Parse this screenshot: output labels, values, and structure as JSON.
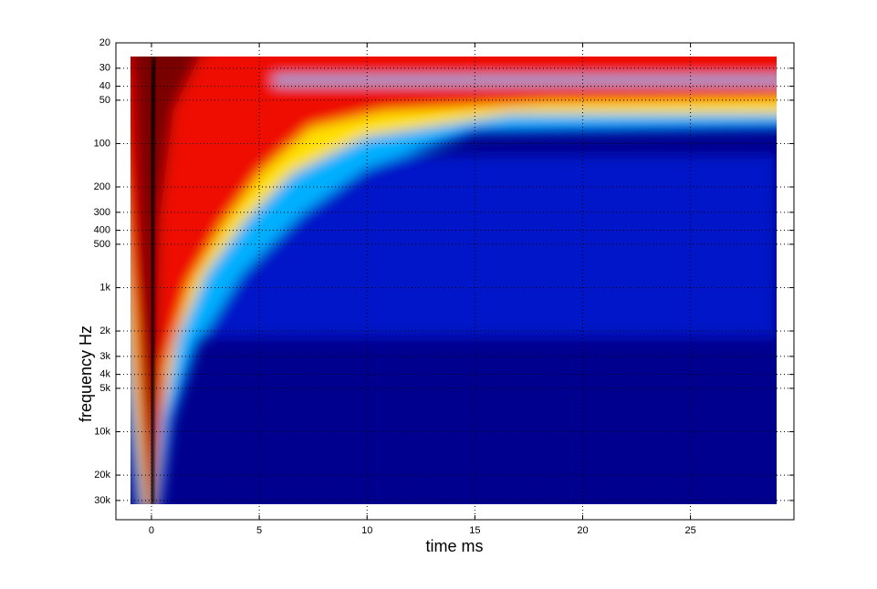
{
  "chart_data": {
    "type": "heatmap",
    "xlabel": "time   ms",
    "ylabel": "frequency   Hz",
    "xlim": [
      -1.65,
      29.8
    ],
    "xticks": [
      0,
      5,
      10,
      15,
      20,
      25
    ],
    "ylim": [
      20,
      40800
    ],
    "yscale": "log",
    "yreverse": true,
    "yticks": [
      20,
      30,
      40,
      50,
      100,
      200,
      300,
      400,
      500,
      {
        "value": 1000,
        "label": "1k"
      },
      {
        "value": 2000,
        "label": "2k"
      },
      {
        "value": 3000,
        "label": "3k"
      },
      {
        "value": 4000,
        "label": "4k"
      },
      {
        "value": 5000,
        "label": "5k"
      },
      {
        "value": 10000,
        "label": "10k"
      },
      {
        "value": 20000,
        "label": "20k"
      },
      {
        "value": 30000,
        "label": "30k"
      }
    ],
    "grid": true
  }
}
